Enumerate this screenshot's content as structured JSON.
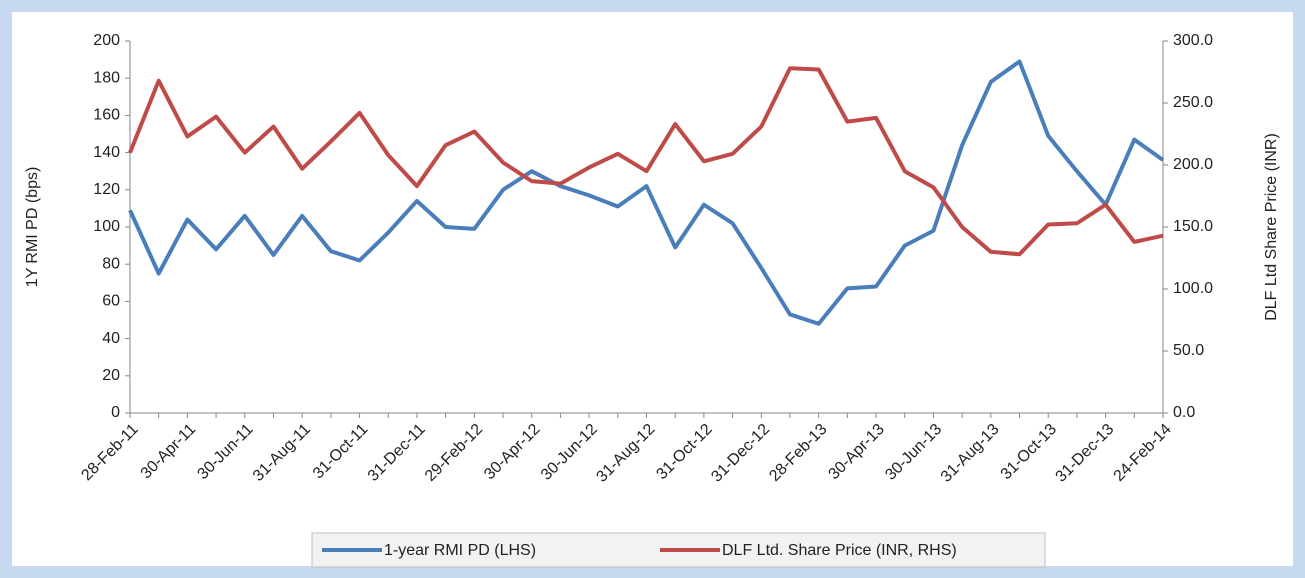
{
  "chart_data": {
    "type": "line",
    "categories": [
      "28-Feb-11",
      null,
      "30-Apr-11",
      null,
      "30-Jun-11",
      null,
      "31-Aug-11",
      null,
      "31-Oct-11",
      null,
      "31-Dec-11",
      null,
      "29-Feb-12",
      null,
      "30-Apr-12",
      null,
      "30-Jun-12",
      null,
      "31-Aug-12",
      null,
      "31-Oct-12",
      null,
      "31-Dec-12",
      null,
      "28-Feb-13",
      null,
      "30-Apr-13",
      null,
      "30-Jun-13",
      null,
      "31-Aug-13",
      null,
      "31-Oct-13",
      null,
      "31-Dec-13",
      null,
      "24-Feb-14"
    ],
    "series": [
      {
        "name": "1-year RMI PD (LHS)",
        "color": "#4a7ebb",
        "axis": "y",
        "values": [
          109,
          75,
          104,
          88,
          106,
          85,
          106,
          87,
          82,
          97,
          114,
          100,
          99,
          120,
          130,
          122,
          117,
          111,
          122,
          89,
          112,
          102,
          78,
          53,
          48,
          67,
          68,
          90,
          98,
          144,
          178,
          189,
          149,
          130,
          112,
          147,
          136
        ]
      },
      {
        "name": "DLF Ltd. Share Price (INR, RHS)",
        "color": "#be4b48",
        "axis": "y2",
        "values": [
          210,
          268,
          223,
          239,
          210,
          231,
          197,
          219,
          242,
          208,
          183,
          216,
          227,
          202,
          187,
          185,
          198,
          209,
          195,
          233,
          203,
          209,
          231,
          278,
          277,
          235,
          238,
          195,
          182,
          150,
          130,
          128,
          152,
          153,
          168,
          138,
          143
        ]
      }
    ],
    "ylabel": "1Y RMI PD (bps)",
    "y2label": "DLF Ltd Share Price (INR)",
    "ylim": [
      0,
      200
    ],
    "yticks": [
      0,
      20,
      40,
      60,
      80,
      100,
      120,
      140,
      160,
      180,
      200
    ],
    "y2lim": [
      0,
      300
    ],
    "y2ticks": [
      {
        "value": 0,
        "label": "0.0"
      },
      {
        "value": 50,
        "label": "50.0"
      },
      {
        "value": 100,
        "label": "100.0"
      },
      {
        "value": 150,
        "label": "150.0"
      },
      {
        "value": 200,
        "label": "200.0"
      },
      {
        "value": 250,
        "label": "250.0"
      },
      {
        "value": 300,
        "label": "300.0"
      }
    ],
    "legend": "bottom"
  }
}
